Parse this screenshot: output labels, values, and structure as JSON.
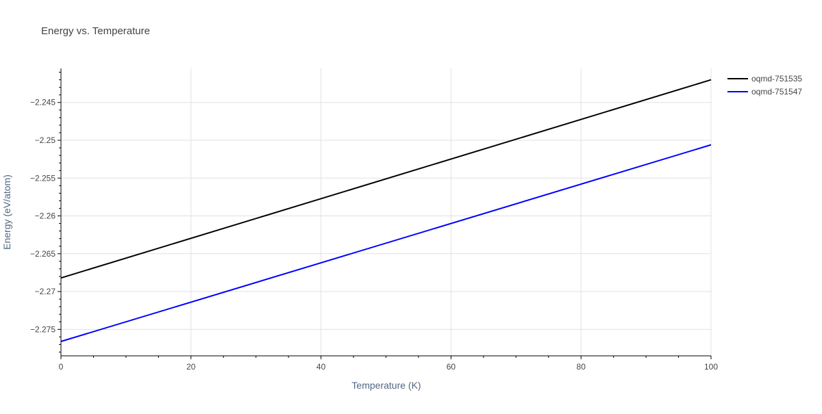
{
  "chart_data": {
    "type": "line",
    "title": "Energy vs. Temperature",
    "xlabel": "Temperature (K)",
    "ylabel": "Energy (eV/atom)",
    "xlim": [
      0,
      100
    ],
    "ylim": [
      -2.2785,
      -2.2405
    ],
    "x_ticks": [
      0,
      20,
      40,
      60,
      80,
      100
    ],
    "x_tick_labels": [
      "0",
      "20",
      "40",
      "60",
      "80",
      "100"
    ],
    "y_ticks": [
      -2.245,
      -2.25,
      -2.255,
      -2.26,
      -2.265,
      -2.27,
      -2.275
    ],
    "y_tick_labels": [
      "−2.245",
      "−2.25",
      "−2.255",
      "−2.26",
      "−2.265",
      "−2.27",
      "−2.275"
    ],
    "grid": true,
    "legend_position": "top-right",
    "series": [
      {
        "name": "oqmd-751535",
        "color": "#000000",
        "x": [
          0,
          100
        ],
        "y": [
          -2.2682,
          -2.242
        ]
      },
      {
        "name": "oqmd-751547",
        "color": "#0000ff",
        "x": [
          0,
          100
        ],
        "y": [
          -2.2766,
          -2.2506
        ]
      }
    ]
  }
}
